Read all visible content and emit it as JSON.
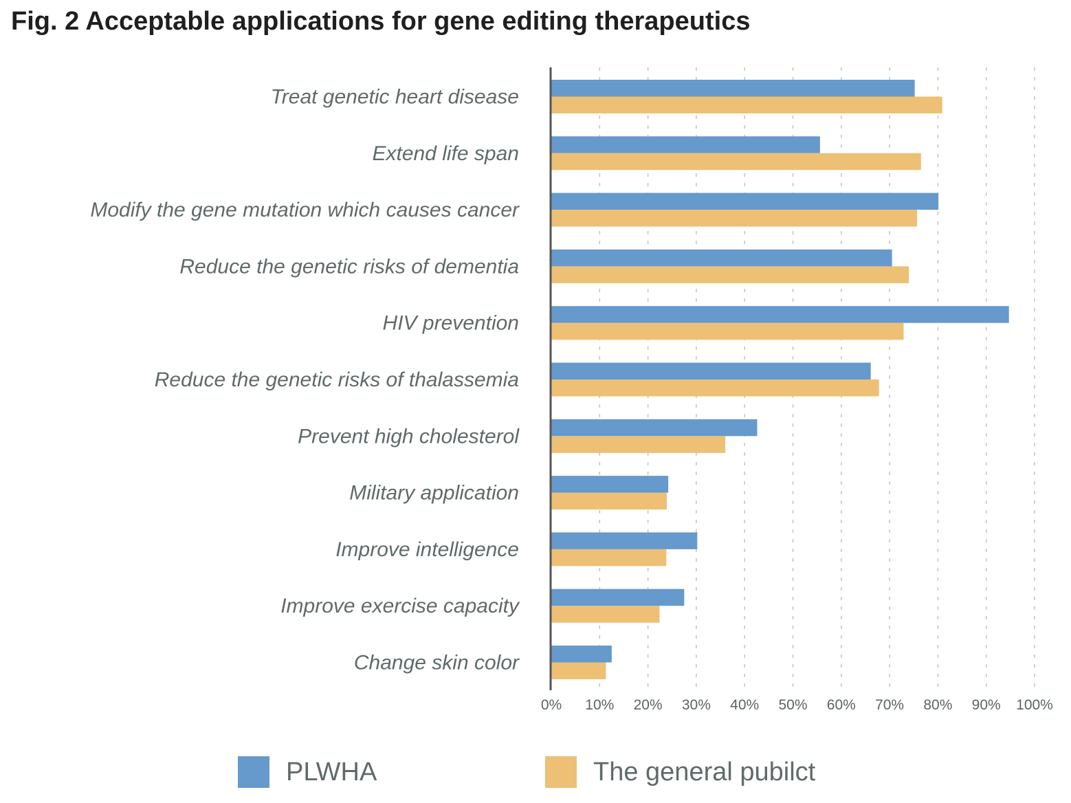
{
  "title": "Fig. 2 Acceptable applications for gene editing therapeutics",
  "chart_data": {
    "type": "bar",
    "orientation": "horizontal",
    "title": "Fig. 2 Acceptable applications for gene editing therapeutics",
    "xlabel": "",
    "ylabel": "",
    "xlim": [
      0,
      100
    ],
    "x_ticks": [
      "0%",
      "10%",
      "20%",
      "30%",
      "40%",
      "50%",
      "60%",
      "70%",
      "80%",
      "90%",
      "100%"
    ],
    "grid": "vertical dashed",
    "legend_position": "bottom",
    "categories": [
      "Treat genetic heart disease",
      "Extend life span",
      "Modify the gene mutation which causes cancer",
      "Reduce the genetic risks of dementia",
      "HIV prevention",
      "Reduce the genetic risks of thalassemia",
      "Prevent high cholesterol",
      "Military application",
      "Improve intelligence",
      "Improve exercise capacity",
      "Change skin color"
    ],
    "series": [
      {
        "name": "PLWHA",
        "color": "#6699cc",
        "values": [
          75.2,
          55.6,
          80.1,
          70.5,
          94.7,
          66.1,
          42.6,
          24.2,
          30.2,
          27.5,
          12.5
        ]
      },
      {
        "name": "The general pubilct",
        "color": "#edc075",
        "values": [
          80.9,
          76.5,
          75.7,
          74.0,
          72.9,
          67.8,
          36.0,
          23.9,
          23.8,
          22.4,
          11.3
        ]
      }
    ]
  }
}
